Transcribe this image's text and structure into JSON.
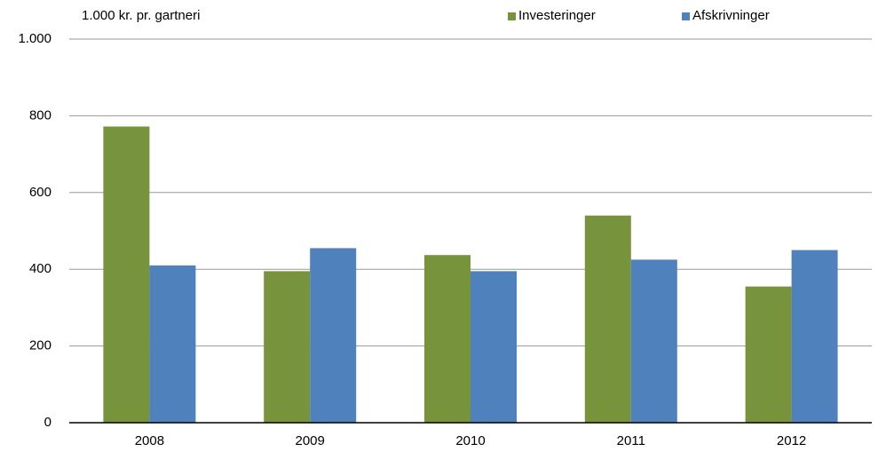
{
  "chart_data": {
    "type": "bar",
    "y_axis_label": "1.000 kr. pr. gartneri",
    "categories": [
      "2008",
      "2009",
      "2010",
      "2011",
      "2012"
    ],
    "series": [
      {
        "name": "Investeringer",
        "color": "#77933c",
        "values": [
          772,
          395,
          437,
          540,
          355
        ]
      },
      {
        "name": "Afskrivninger",
        "color": "#4f81bd",
        "values": [
          410,
          455,
          395,
          425,
          450
        ]
      }
    ],
    "ylim": [
      0,
      1000
    ],
    "yticks": [
      0,
      200,
      400,
      600,
      800,
      {
        "value": 1000,
        "label": "1.000"
      }
    ],
    "grid": true,
    "legend": "top"
  }
}
